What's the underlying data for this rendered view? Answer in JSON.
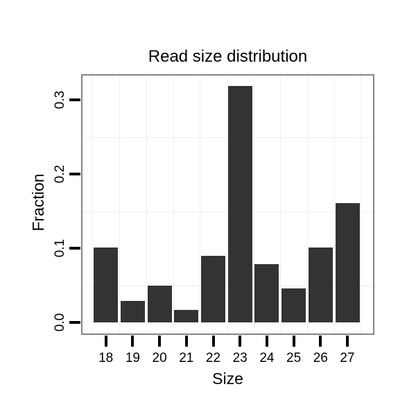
{
  "figure": {
    "background": "#ffffff"
  },
  "chart_data": {
    "type": "bar",
    "title": "Read size distribution",
    "xlabel": "Size",
    "ylabel": "Fraction",
    "categories": [
      "18",
      "19",
      "20",
      "21",
      "22",
      "23",
      "24",
      "25",
      "26",
      "27"
    ],
    "values": [
      0.101,
      0.029,
      0.05,
      0.017,
      0.09,
      0.319,
      0.079,
      0.046,
      0.101,
      0.161
    ],
    "yticks": [
      {
        "value": 0.0,
        "label": "0.0"
      },
      {
        "value": 0.1,
        "label": "0.1"
      },
      {
        "value": 0.2,
        "label": "0.2"
      },
      {
        "value": 0.3,
        "label": "0.3"
      }
    ],
    "minor_gridlines_y": [
      0.05,
      0.15,
      0.25
    ],
    "ylim": [
      -0.015,
      0.333
    ],
    "grid": "minor-only",
    "legend": "none",
    "bar_color": "#333333",
    "panel_border_color": "#858585",
    "grid_color": "#efefef",
    "tick_color": "#000000",
    "text_color": "#000000",
    "panel_background": "#ffffff"
  }
}
